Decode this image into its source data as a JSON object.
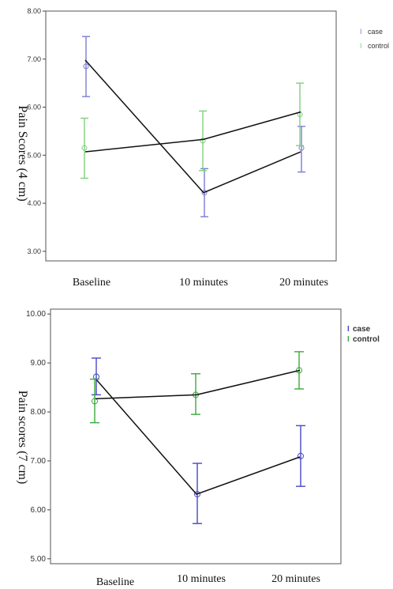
{
  "chart_data": [
    {
      "type": "line",
      "ylabel": "Pain Scores   (4 cm)",
      "categories": [
        "Baseline",
        "10 minutes",
        "20 minutes"
      ],
      "ylim": [
        2.8,
        8.0
      ],
      "yticks": [
        "3.00",
        "4.00",
        "5.00",
        "6.00",
        "7.00",
        "8.00"
      ],
      "ytick_values": [
        3,
        4,
        5,
        6,
        7,
        8
      ],
      "legend": {
        "placement": "top-right",
        "entries": [
          "case",
          "control"
        ]
      },
      "series": [
        {
          "name": "case",
          "color": "#7b7bd6",
          "means": [
            6.85,
            4.22,
            5.15
          ],
          "ci_low": [
            6.22,
            3.72,
            4.65
          ],
          "ci_high": [
            7.47,
            4.72,
            5.6
          ],
          "fit_line": [
            6.98,
            4.22,
            5.07
          ]
        },
        {
          "name": "control",
          "color": "#7ed07e",
          "means": [
            5.15,
            5.3,
            5.85
          ],
          "ci_low": [
            4.52,
            4.68,
            5.2
          ],
          "ci_high": [
            5.77,
            5.92,
            6.5
          ],
          "fit_line": [
            5.07,
            5.33,
            5.9
          ]
        }
      ]
    },
    {
      "type": "line",
      "ylabel": "Pain scores   (7 cm)",
      "categories": [
        "Baseline",
        "10 minutes",
        "20 minutes"
      ],
      "ylim": [
        4.9,
        10.1
      ],
      "yticks": [
        "5.00",
        "6.00",
        "7.00",
        "8.00",
        "9.00",
        "10.00"
      ],
      "ytick_values": [
        5,
        6,
        7,
        8,
        9,
        10
      ],
      "legend": {
        "placement": "top-right",
        "entries": [
          "case",
          "control"
        ]
      },
      "series": [
        {
          "name": "case",
          "color": "#4747c8",
          "means": [
            8.72,
            6.32,
            7.1
          ],
          "ci_low": [
            8.35,
            5.72,
            6.48
          ],
          "ci_high": [
            9.1,
            6.95,
            7.72
          ],
          "fit_line": [
            8.68,
            6.32,
            7.08
          ]
        },
        {
          "name": "control",
          "color": "#3aaa3a",
          "means": [
            8.22,
            8.35,
            8.85
          ],
          "ci_low": [
            7.78,
            7.95,
            8.47
          ],
          "ci_high": [
            8.67,
            8.78,
            9.23
          ],
          "fit_line": [
            8.27,
            8.35,
            8.85
          ]
        }
      ]
    }
  ]
}
